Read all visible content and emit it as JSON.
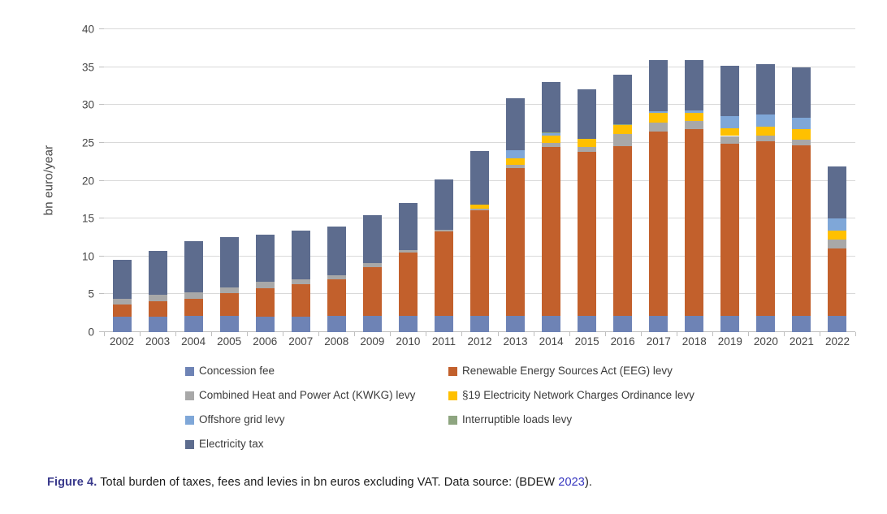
{
  "chart_data": {
    "type": "bar",
    "stacked": true,
    "title": "",
    "xlabel": "",
    "ylabel": "bn euro/year",
    "ylim": [
      0,
      40
    ],
    "yticks": [
      0,
      5,
      10,
      15,
      20,
      25,
      30,
      35,
      40
    ],
    "grid": true,
    "legend_position": "bottom",
    "categories": [
      "2002",
      "2003",
      "2004",
      "2005",
      "2006",
      "2007",
      "2008",
      "2009",
      "2010",
      "2011",
      "2012",
      "2013",
      "2014",
      "2015",
      "2016",
      "2017",
      "2018",
      "2019",
      "2020",
      "2021",
      "2022"
    ],
    "series": [
      {
        "name": "Concession fee",
        "color": "#6e83b5",
        "values": [
          2.0,
          2.0,
          2.1,
          2.1,
          2.0,
          2.0,
          2.1,
          2.1,
          2.1,
          2.1,
          2.1,
          2.1,
          2.1,
          2.1,
          2.1,
          2.1,
          2.1,
          2.1,
          2.1,
          2.1,
          2.1
        ]
      },
      {
        "name": "Renewable Energy Sources Act (EEG) levy",
        "color": "#c2602c",
        "values": [
          1.7,
          2.1,
          2.3,
          3.0,
          3.8,
          4.3,
          4.9,
          6.5,
          8.4,
          11.2,
          14.0,
          19.6,
          22.3,
          21.7,
          22.5,
          24.4,
          24.7,
          22.8,
          23.1,
          22.6,
          9.0
        ]
      },
      {
        "name": "Combined Heat and Power Act (KWKG) levy",
        "color": "#a8a8a8",
        "values": [
          0.7,
          0.8,
          0.9,
          0.8,
          0.8,
          0.7,
          0.5,
          0.5,
          0.3,
          0.2,
          0.2,
          0.4,
          0.6,
          0.6,
          1.6,
          1.2,
          1.1,
          1.0,
          0.8,
          0.7,
          1.1
        ]
      },
      {
        "name": "§19 Electricity Network Charges Ordinance levy",
        "color": "#ffc000",
        "values": [
          0,
          0,
          0,
          0,
          0,
          0,
          0,
          0,
          0,
          0,
          0.5,
          0.9,
          0.9,
          1.1,
          1.1,
          1.3,
          1.1,
          1.0,
          1.1,
          1.4,
          1.2
        ]
      },
      {
        "name": "Offshore grid levy",
        "color": "#7fa7d8",
        "values": [
          0,
          0,
          0,
          0,
          0,
          0,
          0,
          0,
          0,
          0,
          0,
          1.0,
          0.4,
          0,
          0,
          0.2,
          0.3,
          1.6,
          1.6,
          1.5,
          1.6
        ]
      },
      {
        "name": "Interruptible loads levy",
        "color": "#8ea580",
        "values": [
          0,
          0,
          0,
          0,
          0,
          0,
          0,
          0,
          0,
          0,
          0,
          0,
          0.1,
          0,
          0.2,
          0,
          0,
          0,
          0,
          0,
          0
        ]
      },
      {
        "name": "Electricity tax",
        "color": "#5d6c8e",
        "values": [
          5.1,
          5.8,
          6.7,
          6.6,
          6.3,
          6.4,
          6.4,
          6.3,
          6.2,
          6.7,
          7.1,
          6.9,
          6.6,
          6.6,
          6.5,
          6.7,
          6.6,
          6.7,
          6.7,
          6.7,
          6.9
        ]
      }
    ]
  },
  "caption": {
    "label": "Figure 4.",
    "body": " Total burden of taxes, fees and levies in bn euros excluding VAT. Data source: (BDEW ",
    "link": "2023",
    "tail": ")."
  }
}
